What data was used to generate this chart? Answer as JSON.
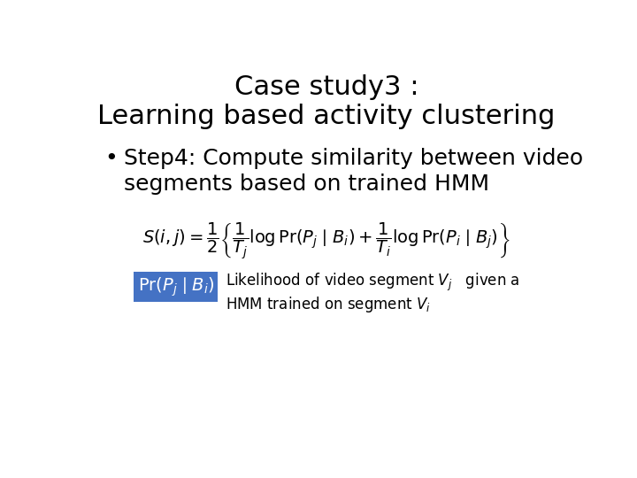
{
  "title_line1": "Case study3 :",
  "title_line2": "Learning based activity clustering",
  "bullet_text_line1": "Step4: Compute similarity between video",
  "bullet_text_line2": "segments based on trained HMM",
  "annotation_line1": "Likelihood of video segment $V_j$   given a",
  "annotation_line2": "HMM trained on segment $V_i$",
  "highlight_color": "#4472C4",
  "background_color": "#ffffff",
  "title_fontsize": 22,
  "bullet_fontsize": 18,
  "formula_fontsize": 14,
  "annotation_fontsize": 12
}
